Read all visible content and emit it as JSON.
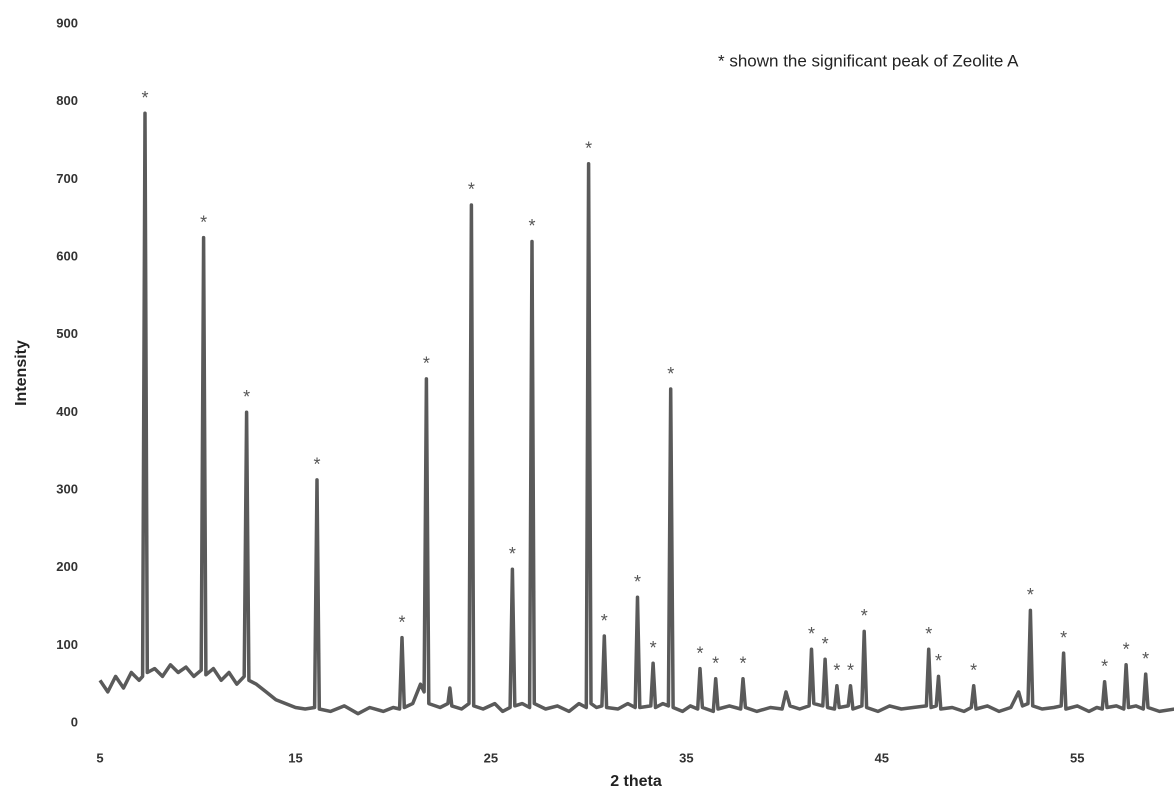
{
  "chart_data": {
    "type": "line",
    "xlabel": "2 theta",
    "ylabel": "Intensity",
    "annotation": "* shown the significant peak of Zeolite A",
    "peak_marker": "*",
    "peak_x": [
      7.3,
      10.3,
      12.5,
      16.1,
      20.45,
      21.7,
      24.0,
      26.1,
      27.1,
      30.0,
      30.8,
      32.5,
      33.3,
      34.2,
      35.7,
      36.5,
      37.9,
      41.4,
      42.1,
      42.7,
      43.4,
      44.1,
      47.4,
      47.9,
      49.7,
      52.6,
      54.3,
      56.4,
      57.5,
      58.5
    ],
    "color": "#5a5a5a",
    "xlim": [
      5,
      60
    ],
    "xticks": [
      5,
      15,
      25,
      35,
      45,
      55
    ],
    "ylim": [
      0,
      900
    ],
    "yticks": [
      0,
      100,
      200,
      300,
      400,
      500,
      600,
      700,
      800,
      900
    ],
    "x": [
      5.0,
      5.4,
      5.8,
      6.2,
      6.6,
      7.0,
      7.18,
      7.3,
      7.42,
      7.8,
      8.2,
      8.6,
      9.0,
      9.4,
      9.8,
      10.18,
      10.3,
      10.42,
      10.8,
      11.2,
      11.6,
      12.0,
      12.38,
      12.5,
      12.62,
      13.0,
      13.5,
      14.0,
      14.5,
      15.0,
      15.5,
      15.98,
      16.1,
      16.22,
      16.8,
      17.5,
      18.2,
      18.8,
      19.5,
      20.0,
      20.33,
      20.45,
      20.57,
      21.0,
      21.4,
      21.58,
      21.7,
      21.82,
      22.4,
      22.8,
      22.9,
      23.0,
      23.5,
      23.88,
      24.0,
      24.12,
      24.6,
      25.2,
      25.6,
      25.98,
      26.1,
      26.22,
      26.6,
      26.98,
      27.1,
      27.22,
      27.8,
      28.4,
      29.0,
      29.5,
      29.88,
      30.0,
      30.12,
      30.4,
      30.68,
      30.8,
      30.92,
      31.5,
      32.0,
      32.38,
      32.5,
      32.62,
      33.18,
      33.3,
      33.42,
      33.8,
      34.08,
      34.2,
      34.32,
      34.8,
      35.2,
      35.58,
      35.7,
      35.82,
      36.38,
      36.5,
      36.62,
      37.2,
      37.78,
      37.9,
      38.02,
      38.6,
      39.3,
      39.9,
      40.1,
      40.3,
      40.8,
      41.28,
      41.4,
      41.52,
      41.98,
      42.1,
      42.22,
      42.58,
      42.7,
      42.82,
      43.28,
      43.4,
      43.52,
      43.98,
      44.1,
      44.22,
      44.8,
      45.4,
      46.0,
      46.6,
      47.28,
      47.4,
      47.52,
      47.78,
      47.9,
      48.02,
      48.6,
      49.2,
      49.58,
      49.7,
      49.82,
      50.4,
      51.0,
      51.6,
      52.0,
      52.2,
      52.48,
      52.6,
      52.72,
      53.2,
      53.8,
      54.18,
      54.3,
      54.42,
      55.0,
      55.6,
      56.0,
      56.28,
      56.4,
      56.52,
      57.0,
      57.38,
      57.5,
      57.62,
      58.0,
      58.38,
      58.5,
      58.62,
      59.2,
      60.0
    ],
    "values": [
      55,
      40,
      60,
      45,
      65,
      55,
      60,
      785,
      65,
      70,
      60,
      75,
      65,
      72,
      60,
      68,
      625,
      62,
      70,
      55,
      65,
      50,
      60,
      400,
      55,
      50,
      40,
      30,
      25,
      20,
      18,
      20,
      313,
      18,
      15,
      22,
      12,
      20,
      15,
      20,
      18,
      110,
      20,
      25,
      50,
      40,
      443,
      25,
      20,
      25,
      45,
      22,
      18,
      25,
      667,
      22,
      18,
      25,
      15,
      20,
      198,
      22,
      25,
      20,
      620,
      25,
      18,
      22,
      15,
      25,
      20,
      720,
      25,
      20,
      22,
      112,
      20,
      18,
      25,
      20,
      162,
      20,
      22,
      77,
      20,
      25,
      22,
      430,
      20,
      15,
      22,
      18,
      70,
      20,
      15,
      57,
      18,
      22,
      18,
      57,
      20,
      15,
      20,
      18,
      40,
      22,
      18,
      22,
      95,
      25,
      22,
      82,
      20,
      18,
      48,
      20,
      22,
      48,
      18,
      22,
      118,
      20,
      15,
      22,
      18,
      20,
      22,
      95,
      20,
      22,
      60,
      18,
      20,
      15,
      20,
      48,
      18,
      22,
      15,
      20,
      40,
      22,
      25,
      145,
      22,
      18,
      20,
      22,
      90,
      18,
      22,
      15,
      20,
      18,
      53,
      20,
      22,
      18,
      75,
      20,
      22,
      18,
      63,
      20,
      15,
      18
    ]
  }
}
